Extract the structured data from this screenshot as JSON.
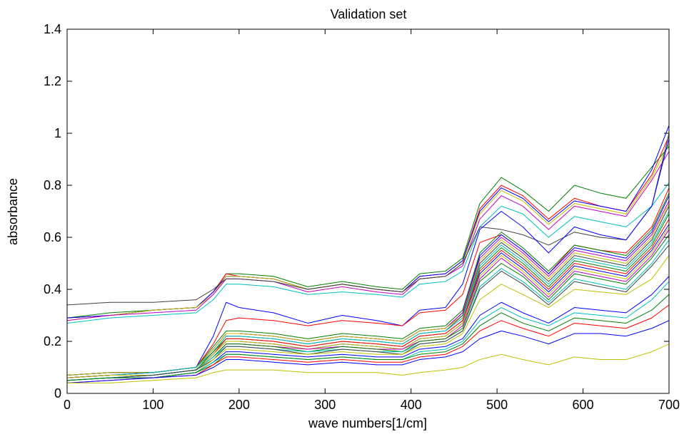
{
  "chart_data": {
    "type": "line",
    "title": "Validation set",
    "xlabel": "wave numbers[1/cm]",
    "ylabel": "absorbance",
    "xlim": [
      0,
      700
    ],
    "ylim": [
      0,
      1.4
    ],
    "xticks": [
      0,
      100,
      200,
      300,
      400,
      500,
      600,
      700
    ],
    "xtick_labels": [
      "0",
      "100",
      "200",
      "300",
      "400",
      "500",
      "600",
      "700"
    ],
    "yticks": [
      0,
      0.2,
      0.4,
      0.6,
      0.8,
      1.0,
      1.2,
      1.4
    ],
    "ytick_labels": [
      "0",
      "0.2",
      "0.4",
      "0.6",
      "0.8",
      "1",
      "1.2",
      "1.4"
    ],
    "grid": false,
    "x": [
      0,
      50,
      100,
      150,
      170,
      185,
      200,
      240,
      280,
      320,
      360,
      390,
      410,
      440,
      460,
      480,
      505,
      530,
      560,
      590,
      620,
      650,
      680,
      700
    ],
    "series": [
      {
        "color": "#008000",
        "values": [
          0.29,
          0.31,
          0.32,
          0.33,
          0.39,
          0.46,
          0.46,
          0.45,
          0.41,
          0.43,
          0.41,
          0.4,
          0.46,
          0.47,
          0.52,
          0.73,
          0.83,
          0.78,
          0.7,
          0.8,
          0.77,
          0.75,
          0.87,
          0.95
        ]
      },
      {
        "color": "#ff0000",
        "values": [
          0.29,
          0.3,
          0.32,
          0.33,
          0.39,
          0.46,
          0.45,
          0.44,
          0.4,
          0.42,
          0.4,
          0.39,
          0.45,
          0.46,
          0.51,
          0.71,
          0.8,
          0.76,
          0.67,
          0.75,
          0.72,
          0.7,
          0.84,
          0.99
        ]
      },
      {
        "color": "#0000ff",
        "values": [
          0.29,
          0.3,
          0.32,
          0.33,
          0.39,
          0.45,
          0.45,
          0.44,
          0.4,
          0.42,
          0.4,
          0.39,
          0.45,
          0.46,
          0.51,
          0.7,
          0.79,
          0.75,
          0.66,
          0.74,
          0.72,
          0.7,
          0.86,
          1.03
        ]
      },
      {
        "color": "#c0c000",
        "values": [
          0.28,
          0.3,
          0.32,
          0.33,
          0.38,
          0.45,
          0.45,
          0.44,
          0.4,
          0.42,
          0.4,
          0.39,
          0.44,
          0.45,
          0.5,
          0.69,
          0.78,
          0.74,
          0.65,
          0.73,
          0.71,
          0.69,
          0.83,
          0.96
        ]
      },
      {
        "color": "#bf00bf",
        "values": [
          0.28,
          0.3,
          0.31,
          0.32,
          0.38,
          0.44,
          0.44,
          0.43,
          0.39,
          0.41,
          0.39,
          0.38,
          0.44,
          0.45,
          0.49,
          0.67,
          0.76,
          0.72,
          0.63,
          0.72,
          0.7,
          0.68,
          0.82,
          0.93
        ]
      },
      {
        "color": "#00bfbf",
        "values": [
          0.27,
          0.29,
          0.3,
          0.31,
          0.36,
          0.42,
          0.42,
          0.41,
          0.38,
          0.39,
          0.38,
          0.37,
          0.42,
          0.43,
          0.47,
          0.64,
          0.72,
          0.69,
          0.6,
          0.68,
          0.66,
          0.64,
          0.72,
          0.81
        ]
      },
      {
        "color": "#404040",
        "values": [
          0.34,
          0.35,
          0.35,
          0.36,
          0.4,
          0.44,
          0.44,
          0.43,
          0.4,
          0.42,
          0.4,
          0.39,
          0.44,
          0.45,
          0.5,
          0.64,
          0.63,
          0.61,
          0.57,
          0.62,
          0.6,
          0.59,
          0.72,
          1.0
        ]
      },
      {
        "color": "#0000ff",
        "values": [
          0.07,
          0.08,
          0.08,
          0.1,
          0.22,
          0.35,
          0.33,
          0.31,
          0.27,
          0.3,
          0.28,
          0.26,
          0.32,
          0.33,
          0.42,
          0.63,
          0.7,
          0.64,
          0.54,
          0.64,
          0.61,
          0.59,
          0.72,
          0.98
        ]
      },
      {
        "color": "#ff0000",
        "values": [
          0.07,
          0.08,
          0.08,
          0.1,
          0.19,
          0.28,
          0.29,
          0.28,
          0.26,
          0.28,
          0.27,
          0.26,
          0.31,
          0.32,
          0.38,
          0.58,
          0.61,
          0.55,
          0.46,
          0.57,
          0.55,
          0.54,
          0.64,
          0.79
        ]
      },
      {
        "color": "#008000",
        "values": [
          0.07,
          0.08,
          0.08,
          0.1,
          0.18,
          0.24,
          0.24,
          0.23,
          0.21,
          0.23,
          0.22,
          0.21,
          0.25,
          0.26,
          0.32,
          0.54,
          0.62,
          0.56,
          0.47,
          0.57,
          0.55,
          0.53,
          0.63,
          0.77
        ]
      },
      {
        "color": "#0000ff",
        "values": [
          0.07,
          0.08,
          0.08,
          0.1,
          0.17,
          0.23,
          0.23,
          0.22,
          0.2,
          0.22,
          0.21,
          0.2,
          0.24,
          0.25,
          0.31,
          0.53,
          0.61,
          0.55,
          0.46,
          0.56,
          0.54,
          0.52,
          0.62,
          0.76
        ]
      },
      {
        "color": "#bf00bf",
        "values": [
          0.06,
          0.07,
          0.08,
          0.1,
          0.17,
          0.23,
          0.23,
          0.22,
          0.2,
          0.22,
          0.21,
          0.2,
          0.24,
          0.25,
          0.31,
          0.52,
          0.6,
          0.54,
          0.45,
          0.55,
          0.53,
          0.51,
          0.61,
          0.74
        ]
      },
      {
        "color": "#c0c000",
        "values": [
          0.07,
          0.08,
          0.08,
          0.1,
          0.17,
          0.23,
          0.23,
          0.22,
          0.2,
          0.22,
          0.21,
          0.2,
          0.24,
          0.25,
          0.3,
          0.51,
          0.59,
          0.53,
          0.44,
          0.54,
          0.52,
          0.5,
          0.6,
          0.73
        ]
      },
      {
        "color": "#404040",
        "values": [
          0.06,
          0.07,
          0.08,
          0.1,
          0.16,
          0.22,
          0.22,
          0.21,
          0.19,
          0.21,
          0.2,
          0.19,
          0.23,
          0.24,
          0.3,
          0.5,
          0.58,
          0.52,
          0.43,
          0.53,
          0.51,
          0.49,
          0.59,
          0.72
        ]
      },
      {
        "color": "#00bfbf",
        "values": [
          0.06,
          0.07,
          0.08,
          0.1,
          0.16,
          0.22,
          0.22,
          0.21,
          0.19,
          0.21,
          0.2,
          0.19,
          0.23,
          0.24,
          0.29,
          0.49,
          0.57,
          0.51,
          0.42,
          0.52,
          0.5,
          0.48,
          0.58,
          0.7
        ]
      },
      {
        "color": "#008000",
        "values": [
          0.06,
          0.07,
          0.07,
          0.09,
          0.16,
          0.21,
          0.21,
          0.2,
          0.18,
          0.2,
          0.19,
          0.18,
          0.22,
          0.23,
          0.28,
          0.48,
          0.56,
          0.5,
          0.41,
          0.51,
          0.49,
          0.47,
          0.57,
          0.69
        ]
      },
      {
        "color": "#ff0000",
        "values": [
          0.06,
          0.07,
          0.07,
          0.09,
          0.15,
          0.21,
          0.21,
          0.2,
          0.18,
          0.2,
          0.19,
          0.18,
          0.22,
          0.23,
          0.28,
          0.47,
          0.55,
          0.49,
          0.4,
          0.5,
          0.48,
          0.46,
          0.56,
          0.67
        ]
      },
      {
        "color": "#0000ff",
        "values": [
          0.06,
          0.07,
          0.07,
          0.09,
          0.15,
          0.2,
          0.2,
          0.19,
          0.17,
          0.19,
          0.18,
          0.17,
          0.21,
          0.22,
          0.27,
          0.46,
          0.54,
          0.48,
          0.39,
          0.49,
          0.47,
          0.45,
          0.55,
          0.65
        ]
      },
      {
        "color": "#c0c000",
        "values": [
          0.06,
          0.07,
          0.07,
          0.09,
          0.15,
          0.2,
          0.2,
          0.19,
          0.17,
          0.19,
          0.18,
          0.17,
          0.21,
          0.22,
          0.27,
          0.45,
          0.53,
          0.47,
          0.38,
          0.48,
          0.46,
          0.44,
          0.54,
          0.64
        ]
      },
      {
        "color": "#bf00bf",
        "values": [
          0.05,
          0.06,
          0.07,
          0.09,
          0.14,
          0.19,
          0.19,
          0.18,
          0.17,
          0.18,
          0.17,
          0.17,
          0.2,
          0.21,
          0.26,
          0.44,
          0.52,
          0.46,
          0.37,
          0.47,
          0.45,
          0.43,
          0.53,
          0.63
        ]
      },
      {
        "color": "#008000",
        "values": [
          0.05,
          0.06,
          0.07,
          0.09,
          0.14,
          0.19,
          0.19,
          0.18,
          0.16,
          0.18,
          0.17,
          0.16,
          0.2,
          0.21,
          0.25,
          0.43,
          0.5,
          0.45,
          0.36,
          0.46,
          0.44,
          0.42,
          0.52,
          0.61
        ]
      },
      {
        "color": "#00bfbf",
        "values": [
          0.05,
          0.06,
          0.07,
          0.09,
          0.14,
          0.18,
          0.18,
          0.17,
          0.16,
          0.17,
          0.16,
          0.16,
          0.19,
          0.2,
          0.24,
          0.41,
          0.48,
          0.43,
          0.35,
          0.44,
          0.42,
          0.4,
          0.5,
          0.59
        ]
      },
      {
        "color": "#404040",
        "values": [
          0.05,
          0.06,
          0.07,
          0.09,
          0.13,
          0.18,
          0.18,
          0.17,
          0.15,
          0.17,
          0.16,
          0.15,
          0.19,
          0.2,
          0.24,
          0.4,
          0.47,
          0.42,
          0.34,
          0.43,
          0.41,
          0.39,
          0.49,
          0.57
        ]
      },
      {
        "color": "#c0c000",
        "values": [
          0.05,
          0.06,
          0.06,
          0.08,
          0.13,
          0.17,
          0.17,
          0.16,
          0.15,
          0.16,
          0.15,
          0.15,
          0.18,
          0.19,
          0.23,
          0.36,
          0.42,
          0.38,
          0.33,
          0.4,
          0.39,
          0.38,
          0.44,
          0.53
        ]
      },
      {
        "color": "#0000ff",
        "values": [
          0.05,
          0.06,
          0.06,
          0.08,
          0.12,
          0.16,
          0.16,
          0.15,
          0.14,
          0.15,
          0.14,
          0.14,
          0.17,
          0.18,
          0.21,
          0.3,
          0.35,
          0.31,
          0.27,
          0.33,
          0.32,
          0.31,
          0.38,
          0.45
        ]
      },
      {
        "color": "#00bfbf",
        "values": [
          0.05,
          0.06,
          0.06,
          0.08,
          0.12,
          0.15,
          0.15,
          0.14,
          0.13,
          0.14,
          0.13,
          0.13,
          0.16,
          0.17,
          0.2,
          0.28,
          0.33,
          0.29,
          0.26,
          0.31,
          0.3,
          0.29,
          0.36,
          0.43
        ]
      },
      {
        "color": "#008000",
        "values": [
          0.05,
          0.06,
          0.06,
          0.08,
          0.11,
          0.15,
          0.15,
          0.14,
          0.13,
          0.14,
          0.13,
          0.13,
          0.15,
          0.16,
          0.19,
          0.26,
          0.31,
          0.27,
          0.24,
          0.29,
          0.28,
          0.27,
          0.32,
          0.38
        ]
      },
      {
        "color": "#ff0000",
        "values": [
          0.04,
          0.05,
          0.06,
          0.07,
          0.11,
          0.14,
          0.14,
          0.13,
          0.12,
          0.13,
          0.12,
          0.12,
          0.14,
          0.15,
          0.18,
          0.24,
          0.28,
          0.25,
          0.22,
          0.27,
          0.26,
          0.25,
          0.29,
          0.34
        ]
      },
      {
        "color": "#0000ff",
        "values": [
          0.04,
          0.05,
          0.06,
          0.07,
          0.1,
          0.13,
          0.13,
          0.12,
          0.11,
          0.12,
          0.11,
          0.11,
          0.13,
          0.14,
          0.16,
          0.21,
          0.24,
          0.22,
          0.19,
          0.23,
          0.23,
          0.22,
          0.25,
          0.28
        ]
      },
      {
        "color": "#c0c000",
        "values": [
          0.04,
          0.04,
          0.05,
          0.06,
          0.08,
          0.09,
          0.09,
          0.09,
          0.08,
          0.08,
          0.08,
          0.07,
          0.08,
          0.09,
          0.1,
          0.13,
          0.15,
          0.13,
          0.11,
          0.14,
          0.13,
          0.13,
          0.16,
          0.19
        ]
      }
    ]
  }
}
